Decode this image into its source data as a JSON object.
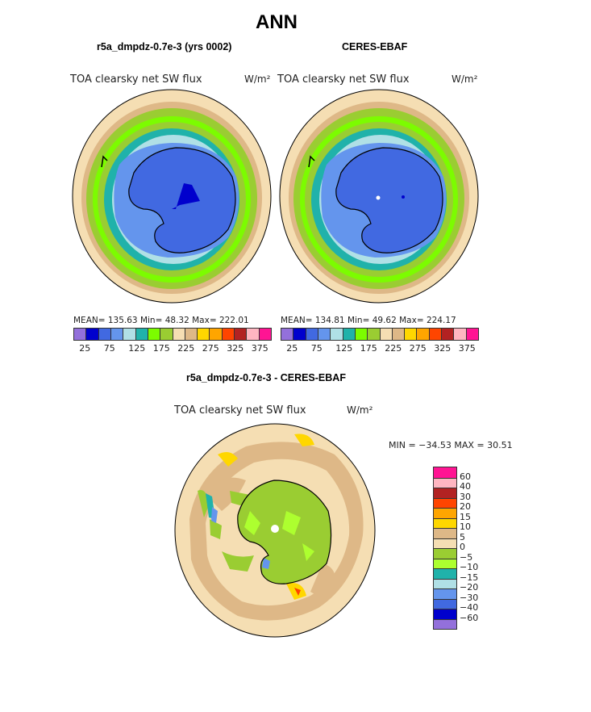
{
  "page_title": "ANN",
  "panels": {
    "model": {
      "header": "r5a_dmpdz-0.7e-3 (yrs 0002)",
      "variable": "TOA clearsky net SW flux",
      "units": "W/m²",
      "stats": "MEAN= 135.63   Min=   48.32   Max= 222.01"
    },
    "obs": {
      "header": "CERES-EBAF",
      "variable": "TOA clearsky net SW flux",
      "units": "W/m²",
      "stats": "MEAN= 134.81   Min=   49.62   Max= 224.17"
    },
    "diff": {
      "header": "r5a_dmpdz-0.7e-3 - CERES-EBAF",
      "variable": "TOA clearsky net SW flux",
      "units": "W/m²",
      "minmax": "MIN = −34.53 MAX =   30.51"
    }
  },
  "colorbar_abs": {
    "colors": [
      "#9370db",
      "#0000cd",
      "#4169e1",
      "#6495ed",
      "#b0e0e6",
      "#20b2aa",
      "#7cfc00",
      "#9acd32",
      "#f5deb3",
      "#deb887",
      "#ffd700",
      "#ffa500",
      "#ff4500",
      "#b22222",
      "#ffb6c1",
      "#ff1493"
    ],
    "tick_labels": [
      "25",
      "75",
      "125",
      "175",
      "225",
      "275",
      "325",
      "375"
    ]
  },
  "colorbar_diff": {
    "colors": [
      "#ff1493",
      "#ffb6c1",
      "#b22222",
      "#ff4500",
      "#ffa500",
      "#ffd700",
      "#deb887",
      "#f5deb3",
      "#9acd32",
      "#adff2f",
      "#20b2aa",
      "#b0e0e6",
      "#6495ed",
      "#4169e1",
      "#0000cd",
      "#9370db"
    ],
    "tick_labels": [
      "60",
      "40",
      "30",
      "20",
      "15",
      "10",
      "5",
      "0",
      "−5",
      "−10",
      "−15",
      "−20",
      "−30",
      "−40",
      "−60"
    ]
  }
}
